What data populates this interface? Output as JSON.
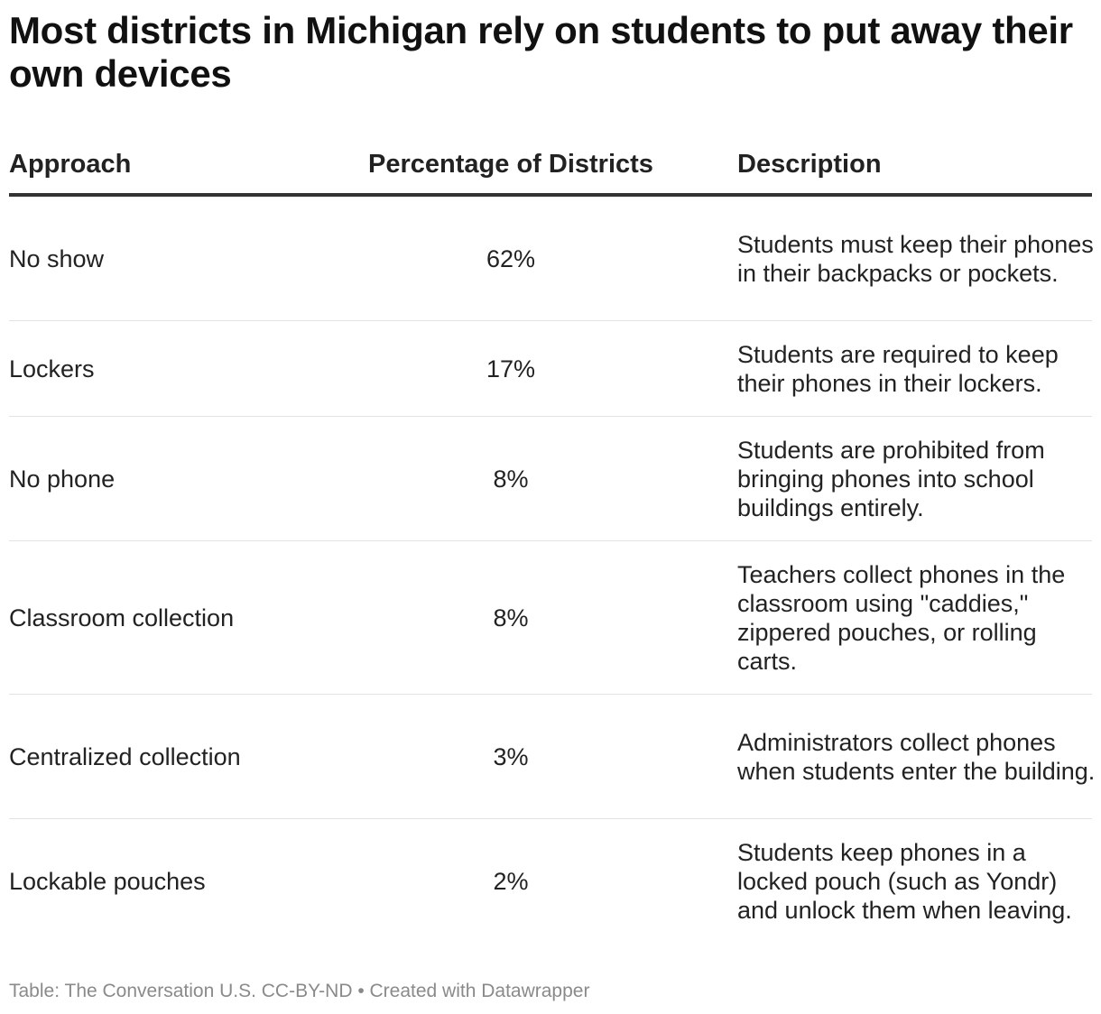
{
  "title": "Most districts in Michigan rely on students to put away their own devices",
  "chart_data": {
    "type": "table",
    "title": "Most districts in Michigan rely on students to put away their own devices",
    "columns": [
      "Approach",
      "Percentage of Districts",
      "Description"
    ],
    "rows": [
      {
        "approach": "No show",
        "percentage": "62%",
        "value": 62,
        "description": "Students must keep their phones in their backpacks or pockets."
      },
      {
        "approach": "Lockers",
        "percentage": "17%",
        "value": 17,
        "description": "Students are required to keep their phones in their lockers."
      },
      {
        "approach": "No phone",
        "percentage": "8%",
        "value": 8,
        "description": "Students are prohibited from bringing phones into school buildings entirely."
      },
      {
        "approach": "Classroom collection",
        "percentage": "8%",
        "value": 8,
        "description": "Teachers collect phones in the classroom using \"caddies,\" zippered pouches, or rolling carts."
      },
      {
        "approach": "Centralized collection",
        "percentage": "3%",
        "value": 3,
        "description": "Administrators collect phones when students enter the building."
      },
      {
        "approach": "Lockable pouches",
        "percentage": "2%",
        "value": 2,
        "description": "Students keep phones in a locked pouch (such as Yondr) and unlock them when leaving."
      }
    ]
  },
  "footer": "Table: The Conversation U.S. CC-BY-ND • Created with Datawrapper"
}
